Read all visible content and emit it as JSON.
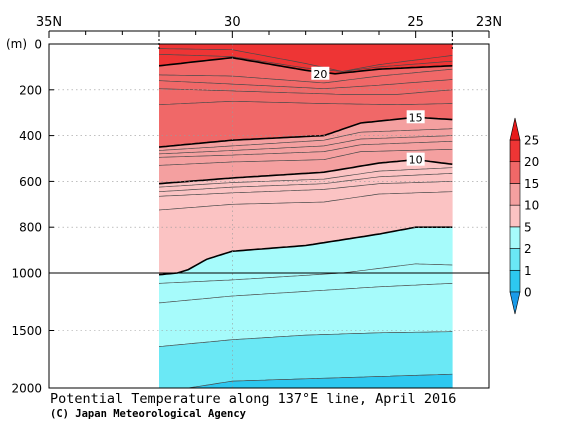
{
  "chart_data": {
    "type": "heatmap",
    "title": "Potential Temperature along 137°E line, April 2016",
    "credit": "(C) Japan Meteorological Agency",
    "x_axis": {
      "unit": "latitude (N)",
      "range": [
        35,
        23
      ],
      "tick_labels": [
        {
          "value": 35,
          "label": "35N"
        },
        {
          "value": 30,
          "label": "30"
        },
        {
          "value": 25,
          "label": "25"
        },
        {
          "value": 23,
          "label": "23N"
        }
      ],
      "minor_ticks": [
        34,
        33,
        32,
        31,
        29,
        28,
        27,
        26,
        24
      ]
    },
    "y_axis": {
      "unit_label": "(m)",
      "upper_range": [
        0,
        1000
      ],
      "lower_range": [
        1000,
        2000
      ],
      "tick_labels": [
        {
          "value": 0,
          "label": "0"
        },
        {
          "value": 200,
          "label": "200"
        },
        {
          "value": 400,
          "label": "400"
        },
        {
          "value": 600,
          "label": "600"
        },
        {
          "value": 800,
          "label": "800"
        },
        {
          "value": 1000,
          "label": "1000"
        },
        {
          "value": 1500,
          "label": "1500"
        },
        {
          "value": 2000,
          "label": "2000"
        }
      ]
    },
    "data_extent_lat": [
      32.0,
      24.0
    ],
    "color_scale": {
      "levels": [
        "0",
        "1",
        "2",
        "5",
        "10",
        "15",
        "20",
        "25"
      ],
      "bands": [
        {
          "from": -1,
          "to": 0,
          "color": "#1a9be8"
        },
        {
          "from": 0,
          "to": 1,
          "color": "#2dc8f0"
        },
        {
          "from": 1,
          "to": 2,
          "color": "#6ae8f5"
        },
        {
          "from": 2,
          "to": 5,
          "color": "#a6fbfb"
        },
        {
          "from": 5,
          "to": 10,
          "color": "#fbc3c3"
        },
        {
          "from": 10,
          "to": 15,
          "color": "#f4a0a0"
        },
        {
          "from": 15,
          "to": 20,
          "color": "#f06868"
        },
        {
          "from": 20,
          "to": 25,
          "color": "#ee3535"
        },
        {
          "from": 25,
          "to": 30,
          "color": "#e71b1b"
        }
      ]
    },
    "contour_labels": [
      {
        "value": "20",
        "lat": 27.6,
        "depth": 130
      },
      {
        "value": "15",
        "lat": 25.0,
        "depth": 320
      },
      {
        "value": "10",
        "lat": 25.0,
        "depth": 505
      }
    ],
    "isotherms": [
      {
        "value": 22,
        "major": false,
        "points": [
          [
            32,
            20
          ],
          [
            30,
            25
          ],
          [
            28,
            85
          ],
          [
            27,
            120
          ],
          [
            26,
            90
          ],
          [
            24,
            50
          ]
        ]
      },
      {
        "value": 21,
        "major": false,
        "points": [
          [
            32,
            45
          ],
          [
            30,
            55
          ],
          [
            28,
            105
          ],
          [
            27,
            120
          ],
          [
            26,
            100
          ],
          [
            24,
            75
          ]
        ]
      },
      {
        "value": 20,
        "major": true,
        "points": [
          [
            32,
            95
          ],
          [
            30,
            60
          ],
          [
            28,
            115
          ],
          [
            27.2,
            130
          ],
          [
            26,
            110
          ],
          [
            24,
            95
          ]
        ]
      },
      {
        "value": 19,
        "major": false,
        "points": [
          [
            32,
            135
          ],
          [
            30,
            140
          ],
          [
            27.5,
            170
          ],
          [
            26,
            140
          ],
          [
            24,
            110
          ]
        ]
      },
      {
        "value": 18,
        "major": false,
        "points": [
          [
            32,
            160
          ],
          [
            30,
            175
          ],
          [
            27.5,
            195
          ],
          [
            26,
            180
          ],
          [
            24,
            155
          ]
        ]
      },
      {
        "value": 17,
        "major": false,
        "points": [
          [
            32,
            195
          ],
          [
            30,
            205
          ],
          [
            27,
            220
          ],
          [
            25.5,
            220
          ],
          [
            24,
            200
          ]
        ]
      },
      {
        "value": 16,
        "major": false,
        "points": [
          [
            32,
            265
          ],
          [
            30,
            250
          ],
          [
            27.5,
            260
          ],
          [
            25.5,
            265
          ],
          [
            24,
            260
          ]
        ]
      },
      {
        "value": 15,
        "major": true,
        "points": [
          [
            32,
            450
          ],
          [
            30,
            420
          ],
          [
            27.5,
            400
          ],
          [
            26.5,
            345
          ],
          [
            25,
            320
          ],
          [
            24,
            330
          ]
        ]
      },
      {
        "value": 14,
        "major": false,
        "points": [
          [
            32,
            465
          ],
          [
            30,
            445
          ],
          [
            27.5,
            420
          ],
          [
            26.5,
            385
          ],
          [
            24,
            370
          ]
        ]
      },
      {
        "value": 13,
        "major": false,
        "points": [
          [
            32,
            480
          ],
          [
            30,
            465
          ],
          [
            27.5,
            445
          ],
          [
            26.5,
            415
          ],
          [
            24,
            400
          ]
        ]
      },
      {
        "value": 12,
        "major": false,
        "points": [
          [
            32,
            495
          ],
          [
            30,
            485
          ],
          [
            27.5,
            470
          ],
          [
            26.5,
            440
          ],
          [
            24,
            425
          ]
        ]
      },
      {
        "value": 11,
        "major": false,
        "points": [
          [
            32,
            530
          ],
          [
            30,
            515
          ],
          [
            27.5,
            505
          ],
          [
            26.5,
            470
          ],
          [
            24,
            460
          ]
        ]
      },
      {
        "value": 10,
        "major": true,
        "points": [
          [
            32,
            610
          ],
          [
            30,
            585
          ],
          [
            27.5,
            560
          ],
          [
            26,
            520
          ],
          [
            25,
            505
          ],
          [
            24,
            525
          ]
        ]
      },
      {
        "value": 9,
        "major": false,
        "points": [
          [
            32,
            625
          ],
          [
            30,
            605
          ],
          [
            27.5,
            590
          ],
          [
            26,
            555
          ],
          [
            24,
            540
          ]
        ]
      },
      {
        "value": 8,
        "major": false,
        "points": [
          [
            32,
            645
          ],
          [
            30,
            625
          ],
          [
            27.5,
            610
          ],
          [
            26,
            580
          ],
          [
            24,
            565
          ]
        ]
      },
      {
        "value": 7,
        "major": false,
        "points": [
          [
            32,
            665
          ],
          [
            30,
            650
          ],
          [
            27.5,
            635
          ],
          [
            26,
            610
          ],
          [
            24,
            600
          ]
        ]
      },
      {
        "value": 6,
        "major": false,
        "points": [
          [
            32,
            725
          ],
          [
            30,
            700
          ],
          [
            27.5,
            690
          ],
          [
            26,
            655
          ],
          [
            24,
            645
          ]
        ]
      },
      {
        "value": 5,
        "major": true,
        "points": [
          [
            32,
            1015
          ],
          [
            31.5,
            1000
          ],
          [
            31.2,
            985
          ],
          [
            30.7,
            940
          ],
          [
            30,
            905
          ],
          [
            28,
            880
          ],
          [
            26,
            830
          ],
          [
            25,
            800
          ],
          [
            24,
            800
          ]
        ]
      },
      {
        "value": 4,
        "major": false,
        "points": [
          [
            32,
            1090
          ],
          [
            30,
            1060
          ],
          [
            28,
            1020
          ],
          [
            26,
            980
          ],
          [
            25,
            960
          ],
          [
            24,
            965
          ]
        ]
      },
      {
        "value": 3,
        "major": false,
        "points": [
          [
            32,
            1260
          ],
          [
            30,
            1200
          ],
          [
            28,
            1160
          ],
          [
            26,
            1120
          ],
          [
            24,
            1090
          ]
        ]
      },
      {
        "value": 2,
        "major": false,
        "points": [
          [
            32,
            1640
          ],
          [
            30,
            1580
          ],
          [
            28,
            1540
          ],
          [
            26,
            1520
          ],
          [
            24,
            1510
          ]
        ]
      },
      {
        "value": 1,
        "major": false,
        "points": [
          [
            31.2,
            2000
          ],
          [
            30,
            1940
          ],
          [
            28,
            1920
          ],
          [
            26,
            1900
          ],
          [
            24,
            1880
          ]
        ]
      }
    ]
  }
}
